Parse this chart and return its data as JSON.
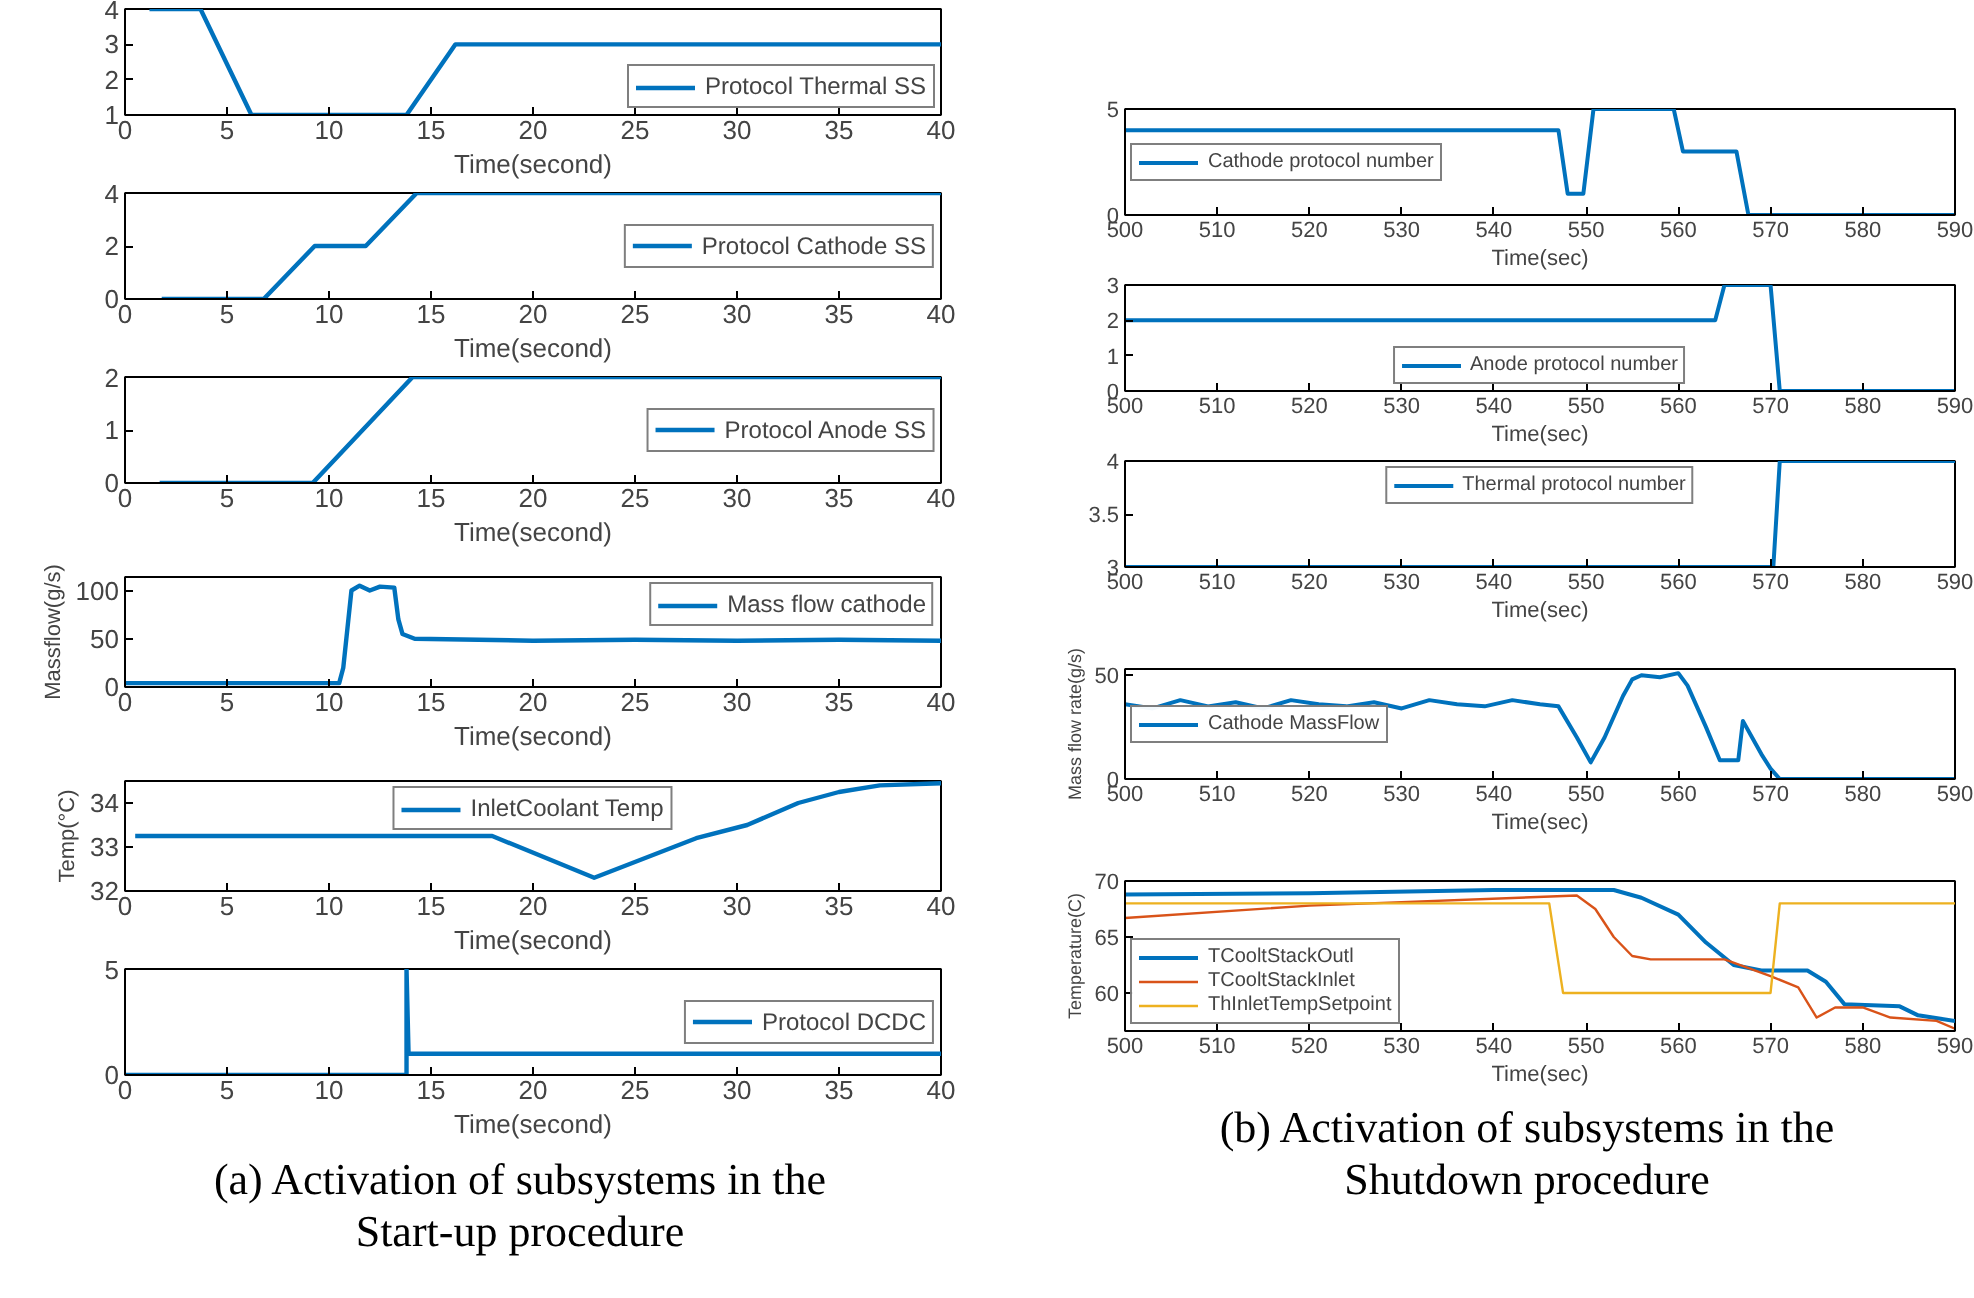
{
  "chart_data": [
    {
      "type": "line",
      "xlabel": "Time(second)",
      "xlim": [
        0,
        40
      ],
      "xticks": [
        0,
        5,
        10,
        15,
        20,
        25,
        30,
        35,
        40
      ],
      "ylim": [
        1,
        4
      ],
      "yticks": [
        1,
        2,
        3,
        4
      ],
      "legend": "bottom right",
      "series": [
        {
          "name": "Protocol Thermal SS",
          "color": "#0072bd",
          "x": [
            1.2,
            3.7,
            6.2,
            13.8,
            16.2,
            40
          ],
          "values": [
            4,
            4,
            1,
            1,
            3,
            3
          ]
        }
      ]
    },
    {
      "type": "line",
      "xlabel": "Time(second)",
      "xlim": [
        0,
        40
      ],
      "xticks": [
        0,
        5,
        10,
        15,
        20,
        25,
        30,
        35,
        40
      ],
      "ylim": [
        0,
        4
      ],
      "yticks": [
        0,
        2,
        4
      ],
      "legend": "right",
      "series": [
        {
          "name": "Protocol Cathode SS",
          "color": "#0072bd",
          "x": [
            1.8,
            6.8,
            9.3,
            11.8,
            14.3,
            40
          ],
          "values": [
            0,
            0,
            2,
            2,
            4,
            4
          ]
        }
      ]
    },
    {
      "type": "line",
      "xlabel": "Time(second)",
      "xlim": [
        0,
        40
      ],
      "xticks": [
        0,
        5,
        10,
        15,
        20,
        25,
        30,
        35,
        40
      ],
      "ylim": [
        0,
        2
      ],
      "yticks": [
        0,
        1,
        2
      ],
      "legend": "right",
      "series": [
        {
          "name": "Protocol Anode SS",
          "color": "#0072bd",
          "x": [
            1.7,
            9.2,
            14.1,
            40
          ],
          "values": [
            0,
            0,
            2,
            2
          ]
        }
      ]
    },
    {
      "type": "line",
      "xlabel": "Time(second)",
      "ylabel": "Massflow(g/s)",
      "xlim": [
        0,
        40
      ],
      "xticks": [
        0,
        5,
        10,
        15,
        20,
        25,
        30,
        35,
        40
      ],
      "ylim": [
        0,
        114
      ],
      "yticks": [
        0,
        50,
        100
      ],
      "legend": "top right",
      "series": [
        {
          "name": "Mass flow cathode",
          "color": "#0072bd",
          "x": [
            0,
            5,
            10.5,
            10.7,
            11.1,
            11.5,
            12,
            12.5,
            13.2,
            13.4,
            13.6,
            14.2,
            20,
            25,
            30,
            35,
            40
          ],
          "values": [
            4,
            4,
            4,
            20,
            100,
            105,
            100,
            104,
            103,
            70,
            55,
            50,
            48,
            49,
            48,
            49,
            48
          ]
        }
      ]
    },
    {
      "type": "line",
      "xlabel": "Time(second)",
      "ylabel": "Temp(°C)",
      "xlim": [
        0,
        40
      ],
      "xticks": [
        0,
        5,
        10,
        15,
        20,
        25,
        30,
        35,
        40
      ],
      "ylim": [
        32,
        34.5
      ],
      "yticks": [
        32,
        33,
        34
      ],
      "legend": "top",
      "series": [
        {
          "name": "InletCoolant Temp",
          "color": "#0072bd",
          "x": [
            0.5,
            18,
            23,
            28,
            30.5,
            33,
            35,
            37,
            40
          ],
          "values": [
            33.25,
            33.25,
            32.3,
            33.2,
            33.5,
            34,
            34.25,
            34.4,
            34.45
          ]
        }
      ]
    },
    {
      "type": "line",
      "xlabel": "Time(second)",
      "xlim": [
        0,
        40
      ],
      "xticks": [
        0,
        5,
        10,
        15,
        20,
        25,
        30,
        35,
        40
      ],
      "ylim": [
        0,
        5
      ],
      "yticks": [
        0,
        5
      ],
      "legend": "right",
      "annotations": [
        "(a) Activation of subsystems in the Start-up procedure"
      ],
      "series": [
        {
          "name": "Protocol DCDC",
          "color": "#0072bd",
          "x": [
            0,
            13.8,
            13.8,
            13.9,
            40
          ],
          "values": [
            0,
            0,
            5,
            1,
            1
          ]
        }
      ]
    },
    {
      "type": "line",
      "xlabel": "Time(sec)",
      "xlim": [
        500,
        590
      ],
      "xticks": [
        500,
        510,
        520,
        530,
        540,
        550,
        560,
        570,
        580,
        590
      ],
      "ylim": [
        0,
        5
      ],
      "yticks": [
        0,
        5
      ],
      "legend": "left",
      "series": [
        {
          "name": "Cathode protocol number",
          "color": "#0072bd",
          "x": [
            500,
            547,
            548,
            549.7,
            550.8,
            559.5,
            560.5,
            566.3,
            567.6,
            590
          ],
          "values": [
            4,
            4,
            1,
            1,
            5,
            5,
            3,
            3,
            0,
            0
          ]
        }
      ]
    },
    {
      "type": "line",
      "xlabel": "Time(sec)",
      "xlim": [
        500,
        590
      ],
      "xticks": [
        500,
        510,
        520,
        530,
        540,
        550,
        560,
        570,
        580,
        590
      ],
      "ylim": [
        0,
        3
      ],
      "yticks": [
        0,
        1,
        2,
        3
      ],
      "legend": "bottom",
      "series": [
        {
          "name": "Anode protocol number",
          "color": "#0072bd",
          "x": [
            500,
            564,
            565,
            570,
            571,
            590
          ],
          "values": [
            2,
            2,
            3,
            3,
            0,
            0
          ]
        }
      ]
    },
    {
      "type": "line",
      "xlabel": "Time(sec)",
      "xlim": [
        500,
        590
      ],
      "xticks": [
        500,
        510,
        520,
        530,
        540,
        550,
        560,
        570,
        580,
        590
      ],
      "ylim": [
        3,
        4
      ],
      "yticks": [
        3,
        3.5,
        4
      ],
      "legend": "top",
      "series": [
        {
          "name": "Thermal protocol number",
          "color": "#0072bd",
          "x": [
            500,
            570.3,
            571,
            590
          ],
          "values": [
            3,
            3,
            4,
            4
          ]
        }
      ]
    },
    {
      "type": "line",
      "xlabel": "Time(sec)",
      "ylabel": "Mass flow rate(g/s)",
      "xlim": [
        500,
        590
      ],
      "xticks": [
        500,
        510,
        520,
        530,
        540,
        550,
        560,
        570,
        580,
        590
      ],
      "ylim": [
        0,
        53
      ],
      "yticks": [
        0,
        50
      ],
      "legend": "left",
      "series": [
        {
          "name": "Cathode MassFlow",
          "color": "#0072bd",
          "x": [
            500,
            503,
            506,
            509,
            512,
            515,
            518,
            521,
            524,
            527,
            530,
            533,
            536,
            539,
            542,
            545,
            547,
            549,
            550.5,
            552,
            554,
            555,
            556,
            558,
            560,
            561,
            563,
            564.5,
            566.5,
            567,
            568,
            569,
            570,
            571,
            590
          ],
          "values": [
            36,
            34,
            38,
            35,
            37,
            34,
            38,
            36,
            35,
            37,
            34,
            38,
            36,
            35,
            38,
            36,
            35,
            20,
            8,
            20,
            40,
            48,
            50,
            49,
            51,
            45,
            25,
            9,
            9,
            28,
            20,
            12,
            5,
            0,
            0
          ]
        }
      ]
    },
    {
      "type": "line",
      "xlabel": "Time(sec)",
      "ylabel": "Temperature(C)",
      "xlim": [
        500,
        590
      ],
      "xticks": [
        500,
        510,
        520,
        530,
        540,
        550,
        560,
        570,
        580,
        590
      ],
      "ylim": [
        56.6,
        70
      ],
      "yticks": [
        60,
        65,
        70
      ],
      "legend": "bottom left",
      "annotations": [
        "(b) Activation of subsystems in the Shutdown procedure"
      ],
      "series": [
        {
          "name": "TCooltStackOutl",
          "color": "#0072bd",
          "x": [
            500,
            520,
            540,
            553,
            556,
            560,
            563,
            566,
            569,
            574,
            576,
            578,
            584,
            586,
            590
          ],
          "values": [
            68.8,
            68.9,
            69.2,
            69.2,
            68.5,
            67,
            64.5,
            62.5,
            62,
            62,
            61,
            59,
            58.8,
            58,
            57.5
          ]
        },
        {
          "name": "TCooltStackInlet",
          "color": "#d95319",
          "x": [
            500,
            520,
            549,
            551,
            553,
            555,
            557,
            565,
            570,
            573,
            575,
            577,
            580,
            583,
            588,
            590
          ],
          "values": [
            66.7,
            67.8,
            68.7,
            67.5,
            65,
            63.3,
            63,
            63,
            61.5,
            60.5,
            57.8,
            58.7,
            58.7,
            57.8,
            57.5,
            56.8
          ]
        },
        {
          "name": "ThInletTempSetpoint",
          "color": "#edb120",
          "x": [
            500,
            546,
            547.5,
            570,
            571,
            590
          ],
          "values": [
            68,
            68,
            60,
            60,
            68,
            68
          ]
        }
      ]
    }
  ]
}
